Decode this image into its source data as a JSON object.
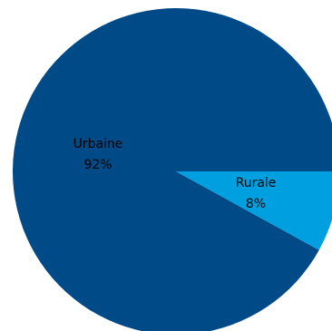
{
  "chart_data": {
    "type": "pie",
    "title": "",
    "slices": [
      {
        "label": "Urbaine",
        "value": 92,
        "value_label": "92%",
        "color": "#004a87"
      },
      {
        "label": "Rurale",
        "value": 8,
        "value_label": "8%",
        "color": "#00a0e0"
      }
    ],
    "start_angle_deg": 0,
    "direction": "counterclockwise"
  }
}
